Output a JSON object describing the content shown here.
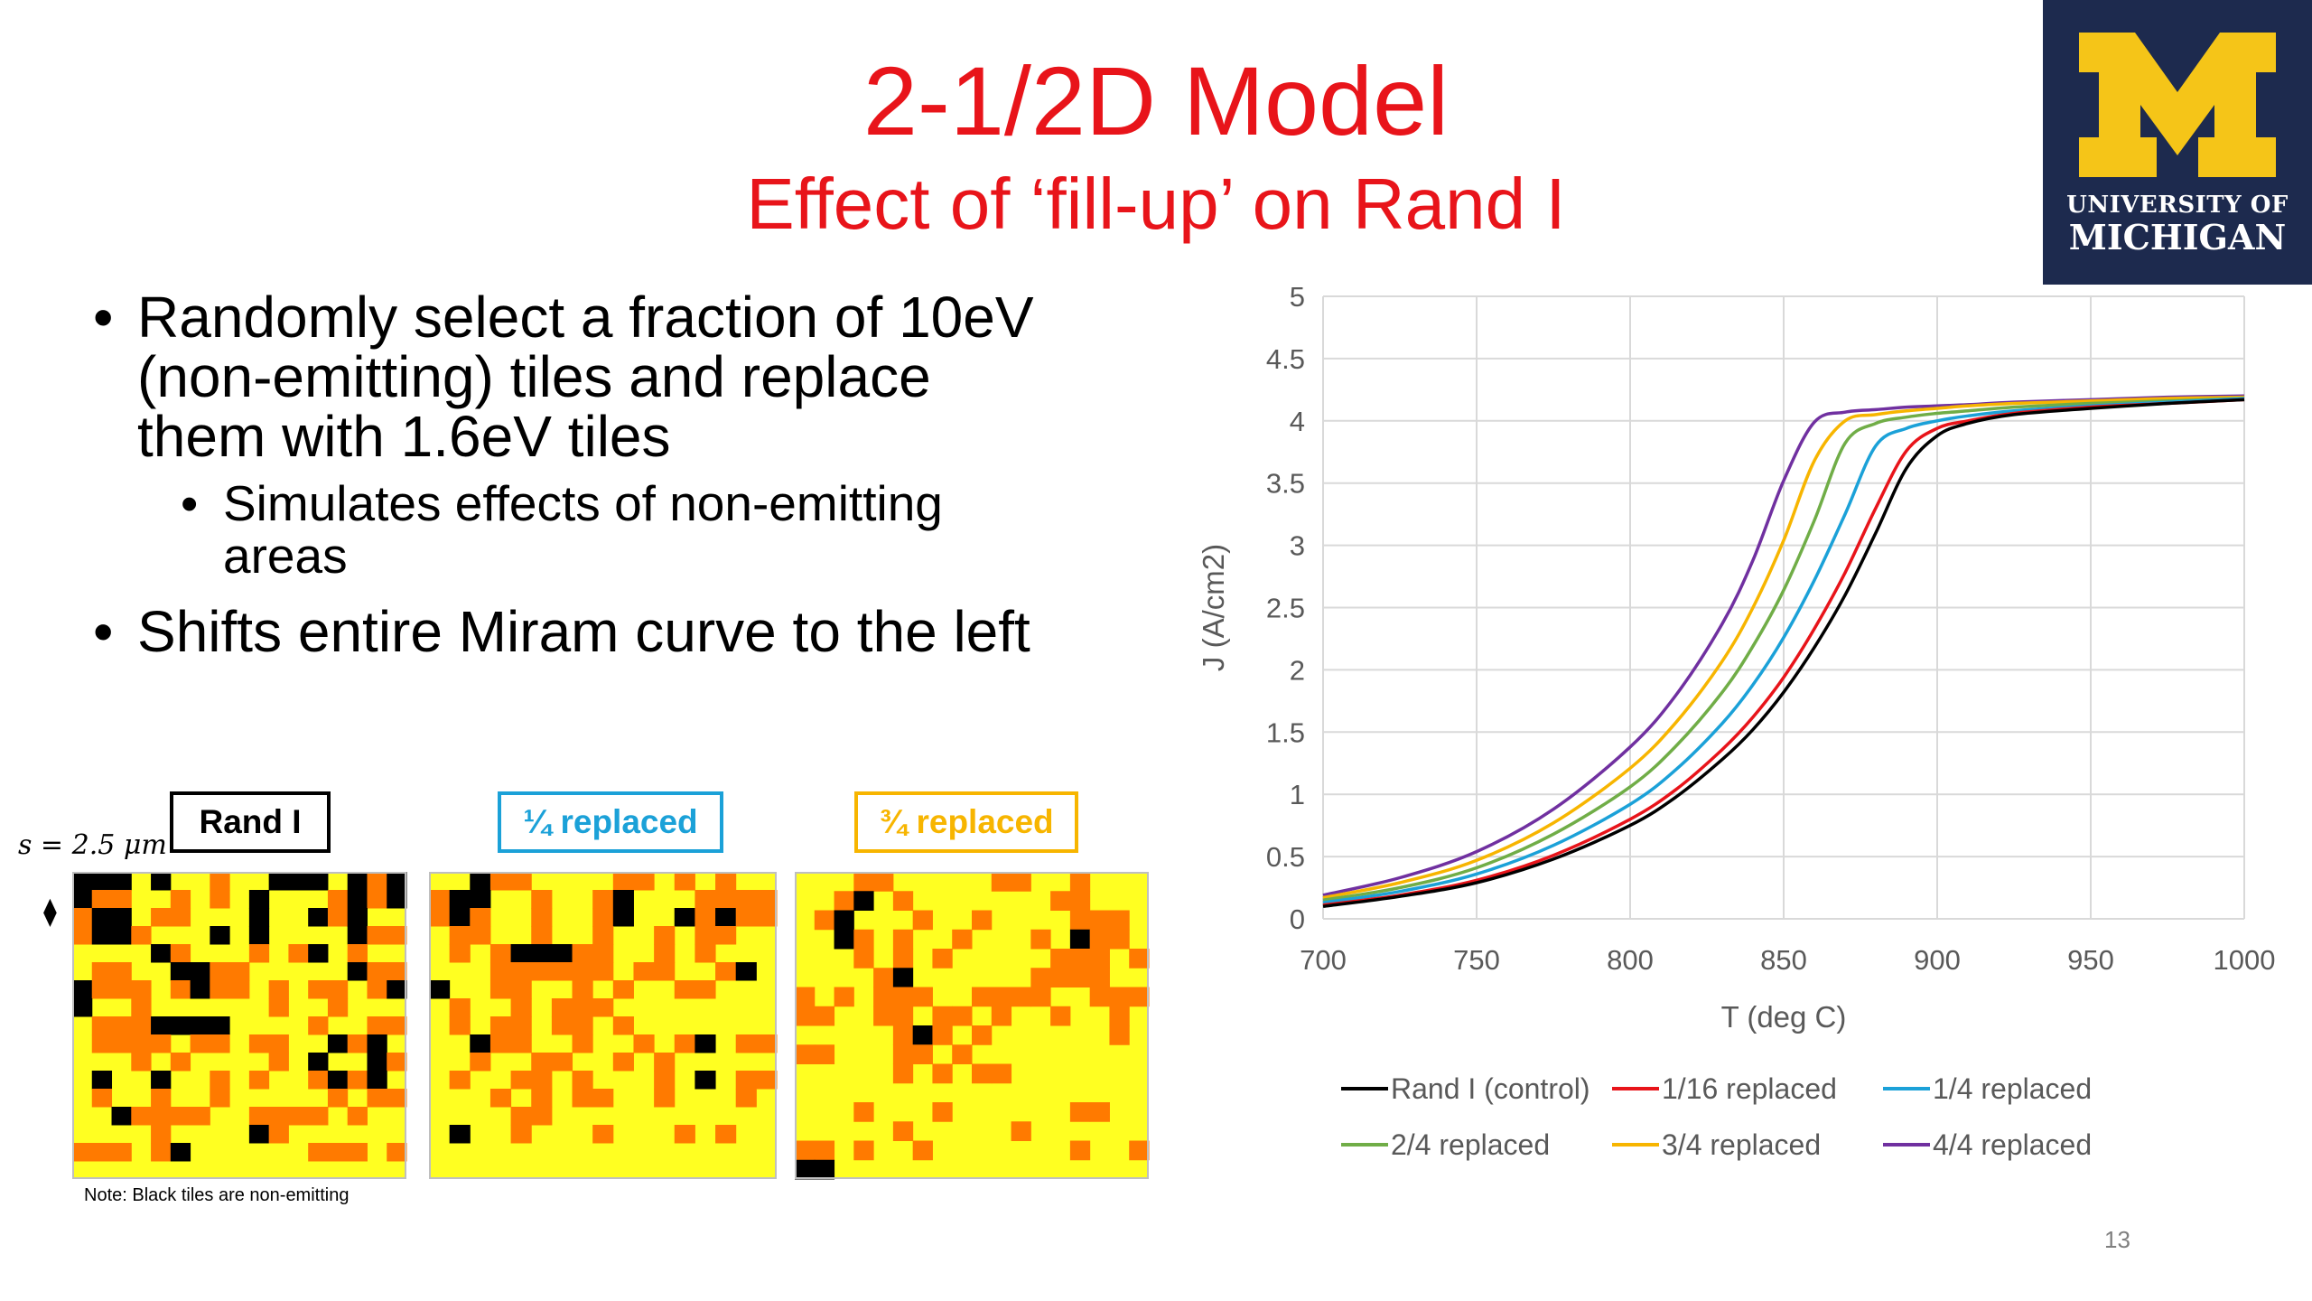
{
  "slide": {
    "title": "2-1/2D Model",
    "subtitle": "Effect of ‘fill-up’ on Rand I",
    "page_number": "13"
  },
  "logo": {
    "letter": "M",
    "line1": "UNIVERSITY OF",
    "line2": "MICHIGAN",
    "colors": {
      "background": "#1d2a4e",
      "maize": "#f5c518"
    }
  },
  "bullets": [
    {
      "text": "Randomly select a fraction of 10eV (non-emitting) tiles and replace them with 1.6eV tiles",
      "sub": [
        "Simulates effects of non-emitting areas"
      ]
    },
    {
      "text": "Shifts entire Miram curve to the left",
      "sub": []
    }
  ],
  "grids": {
    "scale_label": "s = 2.5 μm",
    "diamond_symbol": "⧫",
    "note": "Note: Black tiles are non-emitting",
    "colors": {
      "black": "#000000",
      "orange": "#ff7a00",
      "yellow": "#ffff21"
    },
    "panels": [
      {
        "label": "Rand I",
        "label_border": "#000000",
        "label_color": "#000000",
        "rows": [
          "00KY0YYOYY000YKO0",
          "0OOYYOYOYKYYYOKO0",
          "OKKYOOYYYKYYKOKYY",
          "OKKOYYYKYKYYYYKOO",
          "YYYYKOYYYOYOKYOYY",
          "YOOYYKKOOYYYYYKOO",
          "KOOOYOKOOYOYOOYOK",
          "KYYOYYYYYYOYYOYYY",
          "YOOOKKKKYYYYOYYOO",
          "YOOOOYOOYOOYYKOKY",
          "YYYOYOYYYYOYKYYKO",
          "YKYYKYYOYOYYOKOKY",
          "YOYYOYYOYYYYYOYOO",
          "YYKOOOOYYOOOOYOYY",
          "YYYYOYYYYKOYYYYYY",
          "OOOYOKYYYYYYOOOYO",
          "YYYYYYYYYYYYYYYYY"
        ]
      },
      {
        "label": "¼ replaced",
        "label_border": "#1ba1d8",
        "label_color": "#1ba1d8",
        "rows": [
          "YYKOOYYYYOOYOYOYY",
          "OKKYYOYYOKYYYOOOO",
          "OKOYYOYYOKYYKOKOO",
          "YOOYYOYYOYYOYOOYY",
          "YOYOKKKOOYYOYOYYY",
          "YYYOOOOOOYOOYYOKY",
          "KYYOOYYOYOYYOOYYY",
          "YOYYOYOOOYYYYYYYY",
          "YOYOOYOOYOYYYYYYY",
          "YYKOOYYOYYOYOKYOO",
          "YYOYYOOYYOYOYYYYY",
          "YOYYOOYOYYYOYKYOO",
          "YYYOYOYOOYYOYYYOY",
          "YYYYOOYYYYYYYYYYY",
          "YKYYOYYYOYYYOYOYY",
          "YYYYYYYYYYYYYYYYY",
          "YYYYYYYYYYYYYYYYY"
        ]
      },
      {
        "label": "¾ replaced",
        "label_border": "#f7b500",
        "label_color": "#f7b500",
        "rows": [
          "YYYOOYYYYYOOYYOYYY",
          "YYOKYOYYYYYYYOOYYY",
          "YOKYYYOYYOYYYYOOOY",
          "YYKOYOYYOYYYOYKOOY",
          "YYYOYOYOYYYYYOOOYO",
          "YYYYOKYYYYYYOOOOYY",
          "OYOYOOOYYOOOOYYOOO",
          "OOYYOOYOOYOYYOYYOY",
          "YYYYYOKOYOYYYYYYOY",
          "OOYYYOOYOYYYYYYYYY",
          "YYYYYOYOYOOYYYYYYY",
          "YYYYYYYYYYYYYYYYYY",
          "YYYOYYYOYYYYYYOOYY",
          "YYYYYOYYYYYOYYYYYY",
          "OOYOYYOYYYYYYYOYYO",
          "KKYYYYYYYYYYYYYYYY"
        ]
      }
    ]
  },
  "chart_data": {
    "type": "line",
    "title": "",
    "xlabel": "T (deg C)",
    "ylabel": "J (A/cm2)",
    "xlim": [
      700,
      1000
    ],
    "ylim": [
      0,
      5
    ],
    "x_ticks": [
      "700",
      "750",
      "800",
      "850",
      "900",
      "950",
      "1000"
    ],
    "y_ticks": [
      "0",
      "0.5",
      "1",
      "1.5",
      "2",
      "2.5",
      "3",
      "3.5",
      "4",
      "4.5",
      "5"
    ],
    "grid": true,
    "legend_position": "bottom",
    "x": [
      700,
      725,
      750,
      775,
      800,
      815,
      830,
      840,
      850,
      860,
      870,
      880,
      890,
      900,
      910,
      925,
      950,
      975,
      1000
    ],
    "series": [
      {
        "name": "Rand I (control)",
        "color": "#000000",
        "values": [
          0.1,
          0.18,
          0.29,
          0.48,
          0.75,
          0.98,
          1.28,
          1.52,
          1.82,
          2.18,
          2.6,
          3.1,
          3.62,
          3.88,
          3.98,
          4.05,
          4.1,
          4.14,
          4.17
        ]
      },
      {
        "name": "1/16 replaced",
        "color": "#e8141a",
        "values": [
          0.11,
          0.19,
          0.31,
          0.51,
          0.8,
          1.04,
          1.36,
          1.62,
          1.94,
          2.33,
          2.78,
          3.3,
          3.76,
          3.94,
          4.0,
          4.06,
          4.11,
          4.14,
          4.17
        ]
      },
      {
        "name": "1/4 replaced",
        "color": "#1ba1d8",
        "values": [
          0.13,
          0.22,
          0.36,
          0.59,
          0.92,
          1.2,
          1.57,
          1.88,
          2.26,
          2.72,
          3.25,
          3.8,
          3.94,
          4.0,
          4.04,
          4.08,
          4.12,
          4.15,
          4.18
        ]
      },
      {
        "name": "2/4 replaced",
        "color": "#70ad47",
        "values": [
          0.15,
          0.25,
          0.41,
          0.68,
          1.06,
          1.39,
          1.82,
          2.19,
          2.64,
          3.2,
          3.82,
          3.98,
          4.03,
          4.06,
          4.08,
          4.11,
          4.14,
          4.16,
          4.18
        ]
      },
      {
        "name": "3/4 replaced",
        "color": "#f7b500",
        "values": [
          0.17,
          0.29,
          0.47,
          0.77,
          1.21,
          1.58,
          2.07,
          2.5,
          3.04,
          3.68,
          4.0,
          4.05,
          4.08,
          4.1,
          4.12,
          4.14,
          4.16,
          4.18,
          4.19
        ]
      },
      {
        "name": "4/4 replaced",
        "color": "#7030a0",
        "values": [
          0.19,
          0.33,
          0.54,
          0.88,
          1.38,
          1.8,
          2.37,
          2.88,
          3.52,
          3.99,
          4.07,
          4.09,
          4.11,
          4.12,
          4.13,
          4.15,
          4.17,
          4.19,
          4.2
        ]
      }
    ]
  }
}
